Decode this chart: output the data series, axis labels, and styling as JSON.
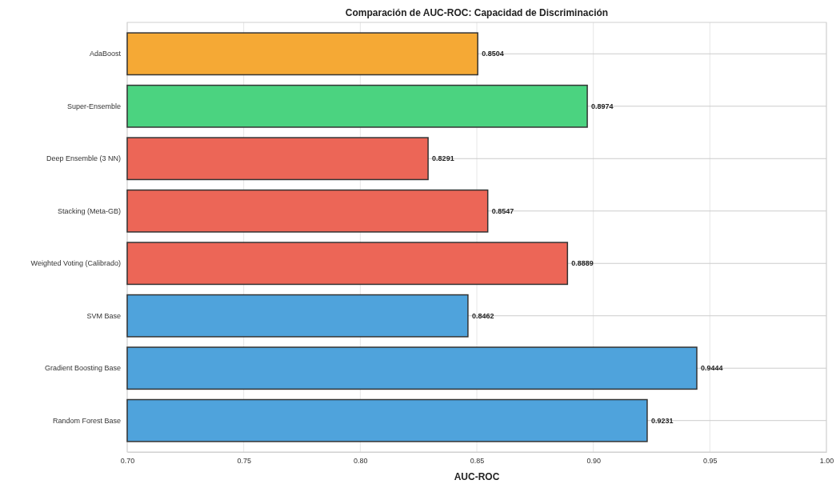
{
  "chart_data": {
    "type": "bar",
    "orientation": "horizontal",
    "title": "Comparación de AUC-ROC: Capacidad de Discriminación",
    "xlabel": "AUC-ROC",
    "categories": [
      "AdaBoost",
      "Super-Ensemble",
      "Deep Ensemble (3 NN)",
      "Stacking (Meta-GB)",
      "Weighted Voting (Calibrado)",
      "SVM Base",
      "Gradient Boosting Base",
      "Random Forest Base"
    ],
    "values": [
      0.8504,
      0.8974,
      0.8291,
      0.8547,
      0.8889,
      0.8462,
      0.9444,
      0.9231
    ],
    "colors": [
      "#f5a935",
      "#4bd380",
      "#ec6657",
      "#ec6657",
      "#ec6657",
      "#4fa3dc",
      "#4fa3dc",
      "#4fa3dc"
    ],
    "xlim": [
      0.7,
      1.0
    ],
    "xticks": [
      {
        "value": 0.7,
        "label": "0.70"
      },
      {
        "value": 0.75,
        "label": "0.75"
      },
      {
        "value": 0.8,
        "label": "0.80"
      },
      {
        "value": 0.85,
        "label": "0.85"
      },
      {
        "value": 0.9,
        "label": "0.90"
      },
      {
        "value": 0.95,
        "label": "0.95"
      },
      {
        "value": 1.0,
        "label": "1.00"
      }
    ],
    "grid": true,
    "data_labels": true
  }
}
